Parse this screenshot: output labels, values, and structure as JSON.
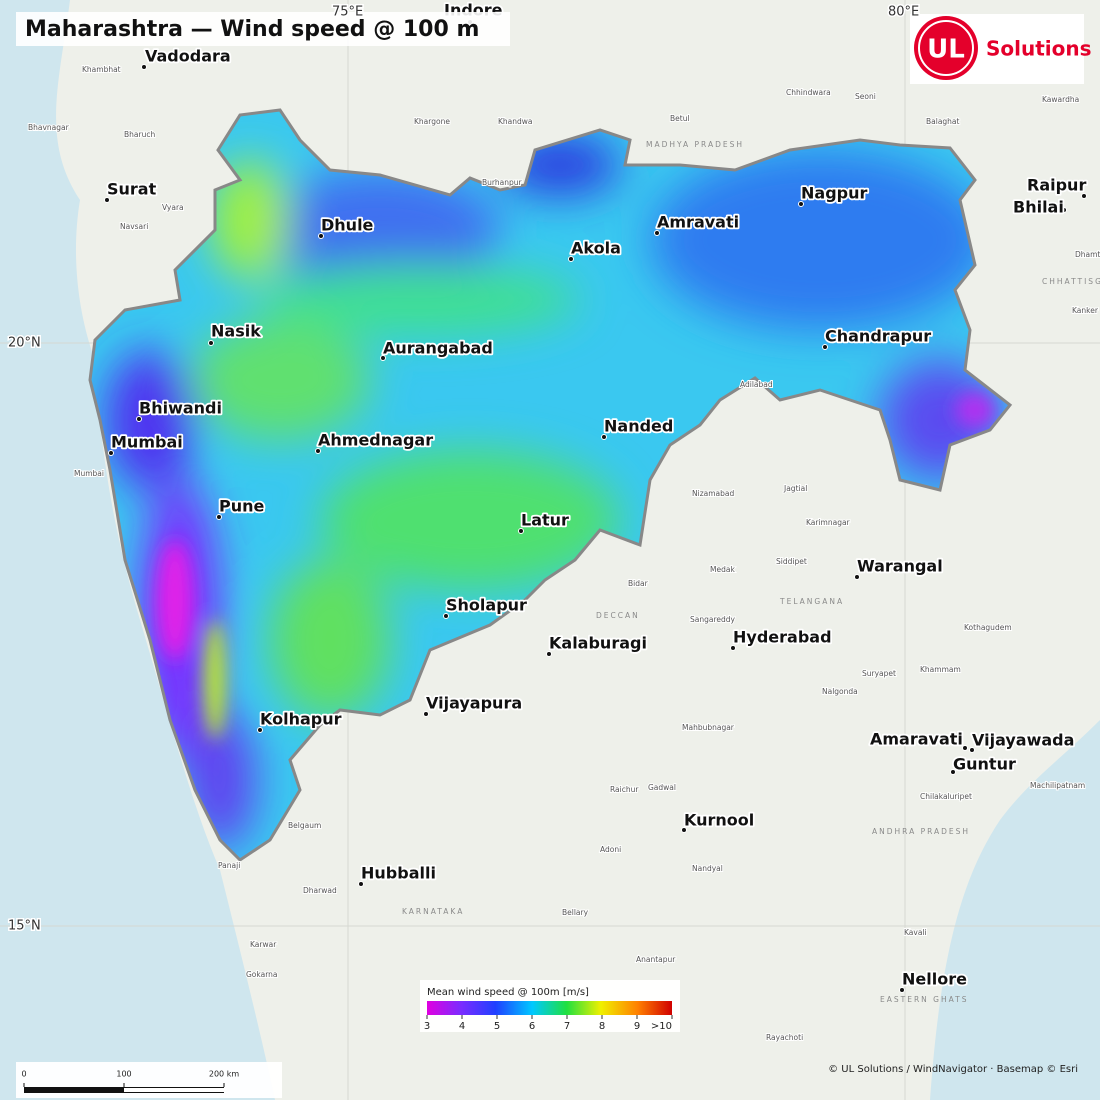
{
  "title": "Maharashtra — Wind speed @ 100 m",
  "logo": {
    "mark": "UL",
    "text": "Solutions"
  },
  "graticule": [
    "75°E",
    "80°E",
    "20°N",
    "15°N"
  ],
  "cities": [
    "Vadodara",
    "Indore",
    "Surat",
    "Dhule",
    "Akola",
    "Amravati",
    "Nagpur",
    "Raipur",
    "Bhilai",
    "Nasik",
    "Aurangabad",
    "Chandrapur",
    "Bhiwandi",
    "Mumbai",
    "Ahmednagar",
    "Nanded",
    "Pune",
    "Latur",
    "Warangal",
    "Sholapur",
    "Kalaburagi",
    "Hyderabad",
    "Vijayapura",
    "Kolhapur",
    "Amaravati",
    "Vijayawada",
    "Guntur",
    "Kurnool",
    "Hubballi",
    "Nellore"
  ],
  "places": [
    "Khambhat",
    "Bharuch",
    "Bhavnagar",
    "Navsari",
    "Vyara",
    "Khargone",
    "Khandwa",
    "Burhanpur",
    "Betul",
    "Chhindwara",
    "Seoni",
    "Balaghat",
    "Kawardha",
    "Dhamtari",
    "Kanker",
    "Adilabad",
    "Nizamabad",
    "Jagtial",
    "Karimnagar",
    "Siddipet",
    "Medak",
    "Bidar",
    "Sangareddy",
    "Nalgonda",
    "Suryapet",
    "Khammam",
    "Kothagudem",
    "Mahbubnagar",
    "Raichur",
    "Gadwal",
    "Adoni",
    "Bellary",
    "Belgaum",
    "Panaji",
    "Dharwad",
    "Karwar",
    "Gokarna",
    "Anantapur",
    "Rayachoti",
    "Kavali",
    "Machilipatnam",
    "Chilakaluripet",
    "Nandyal",
    "Mumbai"
  ],
  "regions": [
    "MADHYA PRADESH",
    "TELANGANA",
    "DECCAN",
    "KARNATAKA",
    "CHHATTISGARH",
    "ANDHRA PRADESH",
    "EASTERN GHATS"
  ],
  "legend": {
    "title": "Mean wind speed @ 100m  [m/s]",
    "ticks": [
      3,
      4,
      5,
      6,
      7,
      8,
      9,
      {
        "value": 10,
        "label": ">10"
      }
    ]
  },
  "scale_bar": {
    "ticks": [
      0,
      100,
      {
        "value": 200,
        "label": "200 km"
      }
    ]
  },
  "attribution": "© UL Solutions / WindNavigator · Basemap © Esri"
}
